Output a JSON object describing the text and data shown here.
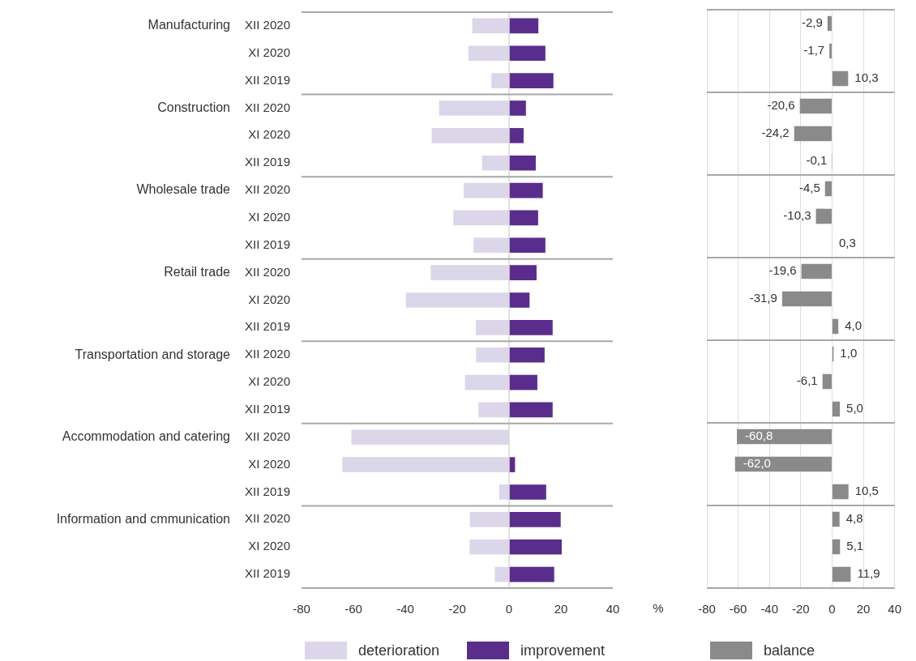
{
  "chart_data": [
    {
      "type": "bar",
      "orientation": "horizontal",
      "stacked": true,
      "categories": [
        "XII 2020",
        "XI 2020",
        "XII 2019",
        "XII 2020",
        "XI 2020",
        "XII 2019",
        "XII 2020",
        "XI 2020",
        "XII 2019",
        "XII 2020",
        "XI 2020",
        "XII 2019",
        "XII 2020",
        "XI 2020",
        "XII 2019",
        "XII 2020",
        "XI 2020",
        "XII 2019",
        "XII 2020",
        "XI 2020",
        "XII 2019"
      ],
      "annotations": [
        "Manufacturing",
        "Construction",
        "Wholesale trade",
        "Retail trade",
        "Transportation and storage",
        "Accommodation and catering",
        "Information and cmmunication"
      ],
      "xlabel": "%",
      "xlim": [
        -80,
        40
      ],
      "xticks": [
        -80,
        -60,
        -40,
        -20,
        0,
        20,
        40
      ],
      "ref_lines": [
        {
          "axis": "x",
          "value": 0,
          "color": "#d9d9d9"
        }
      ],
      "legend": "bottom",
      "series": [
        {
          "name": "deterioration",
          "color": "#dcd6ea",
          "values": [
            -14.2,
            -15.7,
            -6.8,
            -27.0,
            -29.8,
            -10.4,
            -17.5,
            -21.5,
            -13.7,
            -30.2,
            -39.8,
            -12.8,
            -12.7,
            -17.0,
            -11.8,
            -60.8,
            -64.3,
            -3.8,
            -15.1,
            -15.2,
            -5.5
          ]
        },
        {
          "name": "improvement",
          "color": "#5a2d8c",
          "values": [
            11.3,
            14.0,
            17.1,
            6.5,
            5.6,
            10.3,
            13.0,
            11.2,
            14.0,
            10.6,
            7.9,
            16.8,
            13.7,
            10.9,
            16.8,
            0,
            2.3,
            14.3,
            19.9,
            20.3,
            17.4
          ]
        }
      ]
    },
    {
      "type": "bar",
      "orientation": "horizontal",
      "categories": [
        null,
        null,
        null,
        null,
        null,
        null,
        null,
        null,
        null,
        null,
        null,
        null,
        null,
        null,
        null,
        null,
        null,
        null,
        null,
        null,
        null
      ],
      "xlim": [
        -80,
        40
      ],
      "xticks": [
        -80,
        -60,
        -40,
        -20,
        0,
        20,
        40
      ],
      "grid": "x",
      "legend": "bottom",
      "series": [
        {
          "name": "balance",
          "color": "#8a8a8a",
          "values": [
            -2.9,
            -1.7,
            10.3,
            -20.6,
            -24.2,
            -0.1,
            -4.5,
            -10.3,
            0.3,
            -19.6,
            -31.9,
            4.0,
            1.0,
            -6.1,
            5.0,
            -60.8,
            -62.0,
            10.5,
            4.8,
            5.1,
            11.9
          ],
          "value_labels": [
            "-2,9",
            "-1,7",
            "10,3",
            "-20,6",
            "-24,2",
            "-0,1",
            "-4,5",
            "-10,3",
            "0,3",
            "-19,6",
            "-31,9",
            "4,0",
            "1,0",
            "-6,1",
            "5,0",
            "-60,8",
            "-62,0",
            "10,5",
            "4,8",
            "5,1",
            "11,9"
          ]
        }
      ]
    }
  ]
}
